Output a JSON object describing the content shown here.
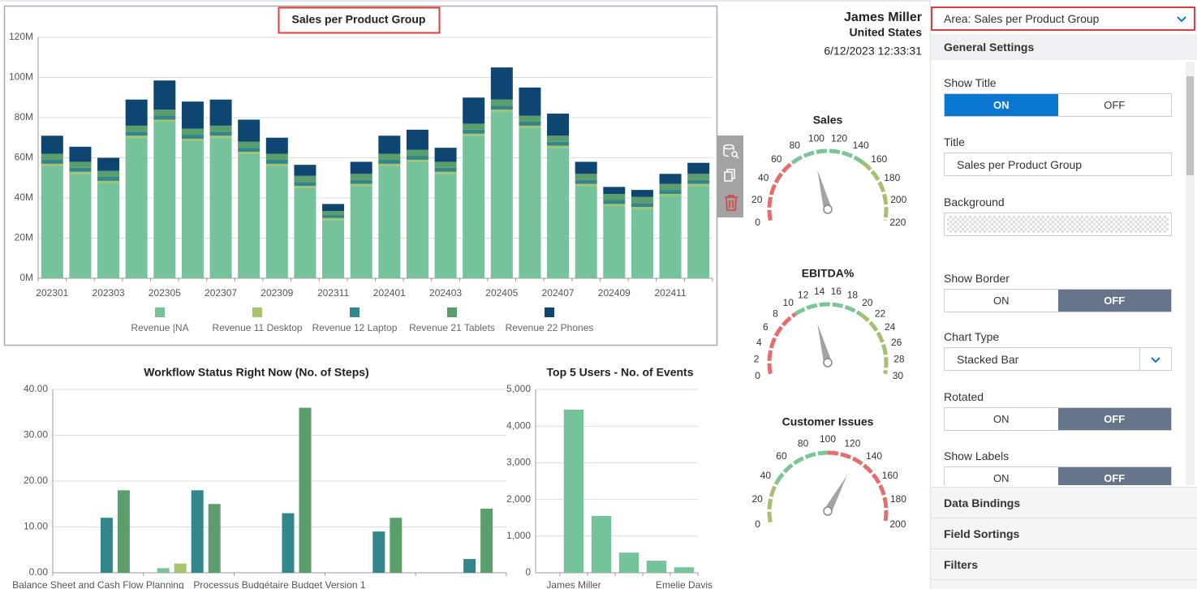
{
  "chart_data": [
    {
      "type": "bar",
      "stacked": true,
      "title": "Sales per Product Group",
      "categories": [
        "202301",
        null,
        "202303",
        null,
        "202305",
        null,
        "202307",
        null,
        "202309",
        null,
        "202311",
        null,
        "202401",
        null,
        "202403",
        null,
        "202405",
        null,
        "202407",
        null,
        "202409",
        null,
        "202411",
        null
      ],
      "series": [
        {
          "name": "Revenue |NA",
          "color": "#76c39b",
          "values": [
            56,
            52,
            47.5,
            70,
            78,
            68.5,
            70,
            62,
            56,
            45,
            29,
            46,
            56,
            58,
            52,
            71,
            83,
            75,
            65,
            46,
            36,
            34.5,
            41,
            46
          ]
        },
        {
          "name": "Revenue 11 Desktop",
          "color": "#a7c46a",
          "values": [
            1,
            1,
            1,
            1,
            1,
            1,
            1,
            1,
            1,
            1,
            1,
            1,
            1,
            1,
            1,
            1,
            1,
            1,
            1,
            1,
            1,
            1,
            1,
            1
          ]
        },
        {
          "name": "Revenue 12 Laptop",
          "color": "#33878a",
          "values": [
            2,
            2,
            2,
            2,
            2,
            2,
            2,
            2,
            2,
            2,
            1.5,
            2,
            2,
            2,
            2,
            2,
            2,
            2,
            2,
            2,
            2,
            2,
            2,
            2
          ]
        },
        {
          "name": "Revenue 21 Tablets",
          "color": "#5a9e6b",
          "values": [
            3,
            3,
            3,
            3,
            3,
            3,
            3,
            3,
            3,
            3,
            2,
            3,
            3,
            3,
            3,
            3,
            3,
            3,
            3,
            3,
            3,
            3,
            3,
            3
          ]
        },
        {
          "name": "Revenue 22 Phones",
          "color": "#0e4671",
          "values": [
            9,
            7.5,
            6.5,
            13,
            14.5,
            13.5,
            13,
            11,
            8,
            5.5,
            3.5,
            6,
            9,
            10,
            7,
            13,
            16,
            14,
            11,
            6,
            3.5,
            3.5,
            5,
            5.5
          ]
        }
      ],
      "ylim": [
        0,
        120
      ],
      "yticks": [
        {
          "value": 0,
          "label": "0M"
        },
        {
          "value": 20,
          "label": "20M"
        },
        {
          "value": 40,
          "label": "40M"
        },
        {
          "value": 60,
          "label": "60M"
        },
        {
          "value": 80,
          "label": "80M"
        },
        {
          "value": 100,
          "label": "100M"
        },
        {
          "value": 120,
          "label": "120M"
        }
      ],
      "grid": true,
      "legend": "bottom"
    },
    {
      "type": "bar",
      "title": "Workflow Status Right Now (No. of Steps)",
      "categories": [
        "Balance Sheet and Cash Flow Planning",
        null,
        "Processus Budgétaire Budget Version 1",
        null,
        null
      ],
      "series": [
        {
          "color": "#76c39b",
          "values": [
            null,
            1,
            null,
            null,
            null
          ]
        },
        {
          "color": "#a7c46a",
          "values": [
            null,
            2,
            null,
            null,
            null
          ]
        },
        {
          "color": "#33878a",
          "values": [
            12,
            18,
            13,
            9,
            3
          ]
        },
        {
          "color": "#5a9e6b",
          "values": [
            18,
            15,
            36,
            12,
            14
          ]
        }
      ],
      "ylim": [
        0,
        40
      ],
      "yticks": [
        {
          "value": 0,
          "label": "0.00"
        },
        {
          "value": 10,
          "label": "10.00"
        },
        {
          "value": 20,
          "label": "20.00"
        },
        {
          "value": 30,
          "label": "30.00"
        },
        {
          "value": 40,
          "label": "40.00"
        }
      ],
      "grid": true
    },
    {
      "type": "bar",
      "title": "Top 5 Users - No. of Events",
      "categories": [
        "James Miller",
        null,
        null,
        null,
        "Emelie Davis"
      ],
      "values": [
        4450,
        1550,
        550,
        330,
        150
      ],
      "color": "#76c39b",
      "ylim": [
        0,
        5000
      ],
      "yticks": [
        0,
        {
          "value": 1000,
          "label": "1,000"
        },
        {
          "value": 2000,
          "label": "2,000"
        },
        {
          "value": 3000,
          "label": "3,000"
        },
        {
          "value": 4000,
          "label": "4,000"
        },
        {
          "value": 5000,
          "label": "5,000"
        }
      ],
      "grid": true
    },
    {
      "type": "gauge",
      "title": "Sales",
      "lim": [
        0,
        220
      ],
      "ticks": [
        0,
        20,
        40,
        60,
        80,
        100,
        120,
        140,
        160,
        180,
        200,
        220
      ],
      "value": 94,
      "ranges": [
        {
          "from": 0,
          "to": 70,
          "color": "#e46e6e"
        },
        {
          "from": 70,
          "to": 150,
          "color": "#7cc598"
        },
        {
          "from": 150,
          "to": 220,
          "color": "#a5c070"
        }
      ]
    },
    {
      "type": "gauge",
      "title": "EBITDA%",
      "lim": [
        0,
        30
      ],
      "ticks": [
        0,
        2,
        4,
        6,
        8,
        10,
        12,
        14,
        16,
        18,
        20,
        22,
        24,
        26,
        28,
        30
      ],
      "value": 12.8,
      "ranges": [
        {
          "from": 0,
          "to": 10,
          "color": "#e46e6e"
        },
        {
          "from": 10,
          "to": 20,
          "color": "#7cc598"
        },
        {
          "from": 20,
          "to": 30,
          "color": "#a5c070"
        }
      ]
    },
    {
      "type": "gauge",
      "title": "Customer Issues",
      "lim": [
        0,
        200
      ],
      "ticks": [
        0,
        20,
        40,
        60,
        80,
        100,
        120,
        140,
        160,
        180,
        200
      ],
      "value": 128,
      "ranges": [
        {
          "from": 0,
          "to": 40,
          "color": "#a5c070"
        },
        {
          "from": 40,
          "to": 100,
          "color": "#7cc598"
        },
        {
          "from": 100,
          "to": 200,
          "color": "#e46e6e"
        }
      ]
    }
  ],
  "header": {
    "user": "James Miller",
    "country": "United States",
    "timestamp": "6/12/2023 12:33:31"
  },
  "panel": {
    "area_select": "Area: Sales per Product Group",
    "section": "General Settings",
    "fields": [
      {
        "label": "Show Title",
        "type": "toggle",
        "options": [
          "ON",
          "OFF"
        ],
        "selected": 0
      },
      {
        "label": "Title",
        "type": "text",
        "value": "Sales per Product Group"
      },
      {
        "label": "Background",
        "type": "color"
      },
      {
        "label": "Show Border",
        "type": "toggle",
        "options": [
          "ON",
          "OFF"
        ],
        "selected": 1
      },
      {
        "label": "Chart Type",
        "type": "select",
        "value": "Stacked Bar"
      },
      {
        "label": "Rotated",
        "type": "toggle",
        "options": [
          "ON",
          "OFF"
        ],
        "selected": 1
      },
      {
        "label": "Show Labels",
        "type": "toggle",
        "options": [
          "ON",
          "OFF"
        ],
        "selected": 1
      }
    ],
    "sections": [
      "Data Bindings",
      "Field Sortings",
      "Filters"
    ]
  }
}
